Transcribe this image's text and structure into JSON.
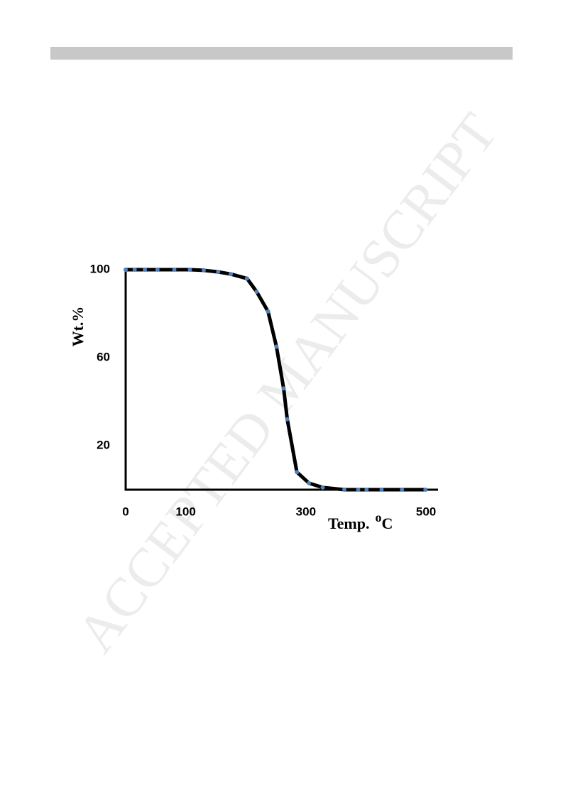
{
  "chart_data": {
    "type": "line",
    "watermark": "ACCEPTED MANUSCRIPT",
    "y_label": "Wt.%",
    "x_label": "Temp.",
    "x_label_sup": "o",
    "x_label_unit": "C",
    "x": [
      0,
      15,
      32,
      53,
      81,
      107,
      130,
      154,
      175,
      202,
      218,
      237,
      251,
      263,
      269,
      285,
      305,
      328,
      364,
      387,
      401,
      426,
      460,
      499
    ],
    "series": [
      {
        "color": "#000000",
        "marker_color": "#4f81bd",
        "values": [
          100,
          100,
          100,
          100,
          100,
          100,
          99.7,
          99,
          98,
          96,
          90,
          81,
          65,
          46,
          32,
          8,
          3,
          1,
          0,
          0,
          0,
          0,
          0,
          0
        ]
      }
    ],
    "xlim": [
      0,
      520
    ],
    "ylim": [
      0,
      100
    ],
    "xticks": [
      0,
      100,
      300,
      500
    ],
    "yticks": [
      100,
      60,
      20
    ]
  }
}
